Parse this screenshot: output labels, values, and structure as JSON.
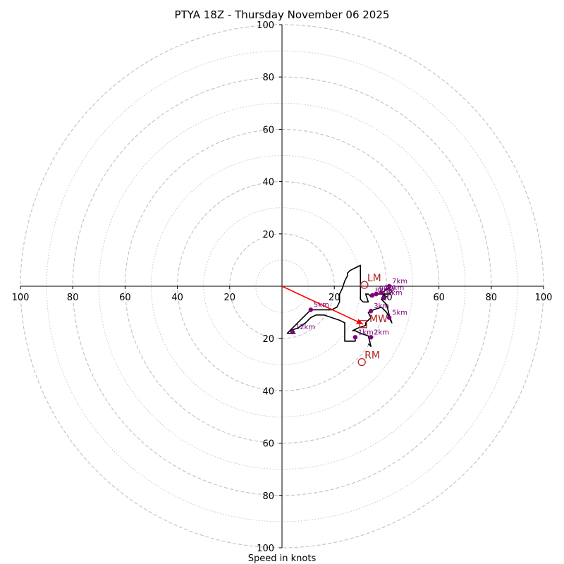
{
  "chart_data": {
    "type": "hodograph",
    "title": "PTYA 18Z - Thursday November 06 2025",
    "xlabel": "Speed in knots",
    "range": [
      -100,
      100
    ],
    "ring_step": 20,
    "ticks": {
      "x": [
        "100",
        "80",
        "60",
        "40",
        "20",
        "20",
        "40",
        "60",
        "80",
        "100"
      ],
      "x_values": [
        -100,
        -80,
        -60,
        -40,
        -20,
        20,
        40,
        60,
        80,
        100
      ],
      "y": [
        "100",
        "80",
        "60",
        "40",
        "20",
        "20",
        "40",
        "60",
        "80",
        "100"
      ],
      "y_values": [
        100,
        80,
        60,
        40,
        20,
        -20,
        -40,
        -60,
        -80,
        -100
      ]
    },
    "trace": [
      [
        33,
        -22
      ],
      [
        34,
        -23
      ],
      [
        33,
        -19
      ],
      [
        30,
        -18
      ],
      [
        28,
        -17
      ],
      [
        27,
        -17
      ],
      [
        29,
        -16
      ],
      [
        32,
        -15
      ],
      [
        32,
        -14
      ],
      [
        34,
        -12
      ],
      [
        33,
        -10
      ],
      [
        35,
        -9
      ],
      [
        38,
        -8
      ],
      [
        40,
        -10
      ],
      [
        42,
        -14
      ],
      [
        41,
        -11
      ],
      [
        40,
        -7
      ],
      [
        39,
        -6
      ],
      [
        38,
        -5
      ],
      [
        40,
        -4
      ],
      [
        38,
        -3
      ],
      [
        39,
        -2
      ],
      [
        40,
        -1
      ],
      [
        41,
        -1
      ],
      [
        42,
        -2
      ],
      [
        41,
        -3
      ],
      [
        40,
        -3
      ],
      [
        39,
        -3
      ],
      [
        37,
        -3
      ],
      [
        36,
        -3
      ],
      [
        35,
        -3
      ],
      [
        34,
        -4
      ],
      [
        33,
        -3
      ],
      [
        32,
        -3
      ],
      [
        33,
        -6
      ],
      [
        31,
        -6
      ],
      [
        30,
        -5
      ],
      [
        30,
        -3
      ],
      [
        30,
        0
      ],
      [
        30,
        3
      ],
      [
        30,
        6
      ],
      [
        30,
        8
      ],
      [
        28,
        7
      ],
      [
        26,
        6
      ],
      [
        25,
        5
      ],
      [
        25,
        4
      ],
      [
        24,
        2
      ],
      [
        23,
        -1
      ],
      [
        22,
        -3
      ],
      [
        22,
        -6
      ],
      [
        21,
        -8
      ],
      [
        19,
        -9
      ],
      [
        17,
        -9
      ],
      [
        15,
        -9
      ],
      [
        13,
        -9
      ],
      [
        11,
        -9
      ],
      [
        9,
        -11
      ],
      [
        7,
        -13
      ],
      [
        5,
        -15
      ],
      [
        3,
        -17
      ],
      [
        2,
        -18
      ],
      [
        5,
        -18
      ],
      [
        3,
        -17
      ],
      [
        6,
        -16
      ],
      [
        9,
        -14
      ],
      [
        11,
        -12
      ],
      [
        13,
        -11
      ],
      [
        16,
        -11
      ],
      [
        19,
        -12
      ],
      [
        22,
        -13
      ],
      [
        24,
        -14
      ],
      [
        24,
        -17
      ],
      [
        24,
        -19
      ],
      [
        24,
        -21
      ],
      [
        26,
        -21
      ],
      [
        28,
        -21
      ],
      [
        28,
        -20
      ]
    ],
    "height_markers": [
      {
        "label": "1km",
        "u": 28,
        "v": -19.5
      },
      {
        "label": "2km",
        "u": 34,
        "v": -19.5
      },
      {
        "label": "3km",
        "u": 34,
        "v": -9.5
      },
      {
        "label": "5km",
        "u": 41,
        "v": -12
      },
      {
        "label": "6km",
        "u": 39,
        "v": -4.5
      },
      {
        "label": "7km",
        "u": 41,
        "v": 0
      },
      {
        "label": "8km",
        "u": 34.5,
        "v": -3.5
      },
      {
        "label": "9km",
        "u": 36,
        "v": -3
      },
      {
        "label": "10km",
        "u": 38,
        "v": -2.5
      },
      {
        "label": "5km",
        "u": 11,
        "v": -9
      },
      {
        "label": "12km",
        "u": 4,
        "v": -17.5
      }
    ],
    "motion": {
      "mean_wind": {
        "label": "MW",
        "u": 31,
        "v": -14.5
      },
      "left_mover": {
        "label": "LM",
        "u": 31.5,
        "v": 0.5
      },
      "right_mover": {
        "label": "RM",
        "u": 30.5,
        "v": -29
      }
    },
    "colors": {
      "grid": "#c0c0c0",
      "trace": "#000000",
      "marker": "#800080",
      "motion": "#b22222",
      "shear_vector": "#ff0000"
    }
  }
}
